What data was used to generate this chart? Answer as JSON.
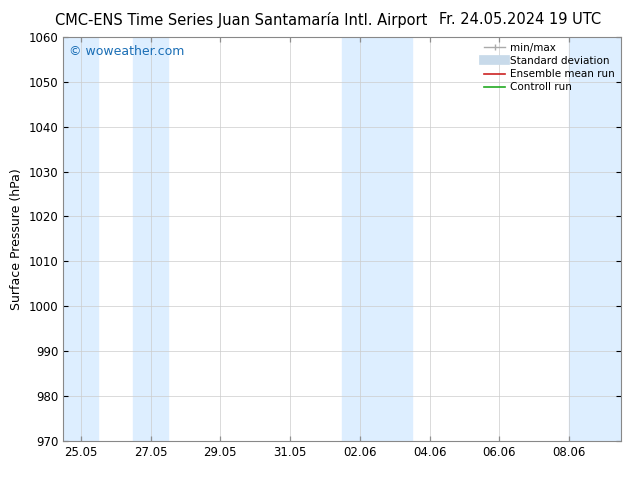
{
  "title_left": "CMC-ENS Time Series Juan Santamaría Intl. Airport",
  "title_right": "Fr. 24.05.2024 19 UTC",
  "ylabel": "Surface Pressure (hPa)",
  "watermark": "© woweather.com",
  "watermark_color": "#1a6eb5",
  "ylim": [
    970,
    1060
  ],
  "yticks": [
    970,
    980,
    990,
    1000,
    1010,
    1020,
    1030,
    1040,
    1050,
    1060
  ],
  "xtick_labels": [
    "25.05",
    "27.05",
    "29.05",
    "31.05",
    "02.06",
    "04.06",
    "06.06",
    "08.06"
  ],
  "xtick_positions": [
    0,
    2,
    4,
    6,
    8,
    10,
    12,
    14
  ],
  "xlim": [
    -0.5,
    15.5
  ],
  "bg_color": "#ffffff",
  "plot_bg_color": "#ffffff",
  "shaded_bands": [
    {
      "x_start": -0.5,
      "x_end": 0.5,
      "color": "#ddeeff"
    },
    {
      "x_start": 1.5,
      "x_end": 2.5,
      "color": "#ddeeff"
    },
    {
      "x_start": 7.5,
      "x_end": 9.5,
      "color": "#ddeeff"
    },
    {
      "x_start": 14.0,
      "x_end": 15.5,
      "color": "#ddeeff"
    }
  ],
  "legend_items": [
    {
      "label": "min/max",
      "color": "#aaaaaa",
      "lw": 1.0
    },
    {
      "label": "Standard deviation",
      "color": "#c8daea",
      "lw": 7
    },
    {
      "label": "Ensemble mean run",
      "color": "#cc2222",
      "lw": 1.2
    },
    {
      "label": "Controll run",
      "color": "#22aa22",
      "lw": 1.2
    }
  ],
  "title_fontsize": 10.5,
  "tick_fontsize": 8.5,
  "label_fontsize": 9,
  "watermark_fontsize": 9
}
